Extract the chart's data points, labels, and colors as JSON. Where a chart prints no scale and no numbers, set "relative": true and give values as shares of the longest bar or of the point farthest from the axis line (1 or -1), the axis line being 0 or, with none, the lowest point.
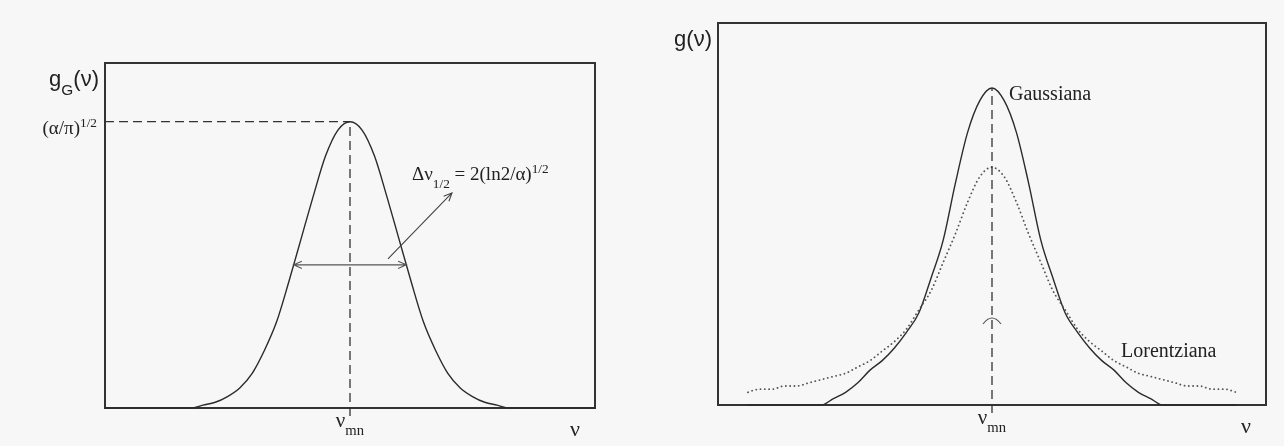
{
  "chart_data": [
    {
      "type": "line",
      "ylabel": "g$_{G}$(ν)",
      "xlabel": "ν",
      "relative": true,
      "categories": [
        null,
        null,
        null,
        null,
        null,
        null,
        null,
        null,
        null,
        null,
        null,
        null,
        null,
        null,
        null,
        null,
        null,
        null,
        null,
        null,
        null,
        null,
        null,
        null,
        null,
        null,
        null,
        null,
        null,
        null,
        null,
        null,
        null,
        null,
        null,
        null,
        null,
        null,
        null,
        null,
        null
      ],
      "series": [
        {
          "color": "#2b2b2b",
          "line_style": "solid",
          "values": [
            0,
            0,
            0,
            0,
            0,
            0,
            0,
            0,
            0.01,
            0.02,
            0.04,
            0.07,
            0.12,
            0.2,
            0.3,
            0.44,
            0.59,
            0.74,
            0.88,
            0.97,
            1,
            0.97,
            0.88,
            0.74,
            0.59,
            0.44,
            0.3,
            0.2,
            0.12,
            0.07,
            0.04,
            0.02,
            0.01,
            0,
            0,
            0,
            0,
            0,
            0,
            0,
            0
          ]
        }
      ],
      "ref_lines": [
        {
          "axis": "y",
          "value": 1,
          "label": "(α/π)$^{1/2}$",
          "color": "#333333",
          "line_style": "dashed"
        }
      ],
      "annotations": [
        "ν$_{mn}$",
        "Δν$_{1/2}$ = 2(ln2/α)$^{1/2}$"
      ]
    },
    {
      "type": "line",
      "ylabel": "g(ν)",
      "xlabel": "ν",
      "relative": true,
      "categories": [
        null,
        null,
        null,
        null,
        null,
        null,
        null,
        null,
        null,
        null,
        null,
        null,
        null,
        null,
        null,
        null,
        null,
        null,
        null,
        null,
        null,
        null,
        null,
        null,
        null,
        null,
        null,
        null,
        null,
        null,
        null,
        null,
        null,
        null,
        null,
        null,
        null,
        null,
        null,
        null,
        null
      ],
      "series": [
        {
          "name": "Gaussiana",
          "color": "#2b2b2b",
          "line_style": "solid",
          "values": [
            0,
            0,
            0,
            0,
            0,
            0,
            0,
            0.02,
            0.04,
            0.07,
            0.11,
            0.14,
            0.18,
            0.23,
            0.29,
            0.4,
            0.52,
            0.7,
            0.86,
            0.96,
            1,
            0.96,
            0.86,
            0.7,
            0.52,
            0.4,
            0.29,
            0.23,
            0.18,
            0.14,
            0.11,
            0.07,
            0.04,
            0.02,
            0,
            0,
            0,
            0,
            0,
            0,
            0
          ]
        },
        {
          "name": "Lorentziana",
          "color": "#555555",
          "line_style": "dotted",
          "values": [
            0.04,
            0.05,
            0.05,
            0.06,
            0.06,
            0.07,
            0.08,
            0.09,
            0.1,
            0.12,
            0.14,
            0.17,
            0.2,
            0.24,
            0.3,
            0.36,
            0.45,
            0.54,
            0.64,
            0.72,
            0.75,
            0.72,
            0.64,
            0.54,
            0.45,
            0.36,
            0.3,
            0.24,
            0.2,
            0.17,
            0.14,
            0.12,
            0.1,
            0.09,
            0.08,
            0.07,
            0.06,
            0.06,
            0.05,
            0.05,
            0.04
          ]
        }
      ],
      "annotations": [
        "ν$_{mn}$"
      ]
    }
  ]
}
